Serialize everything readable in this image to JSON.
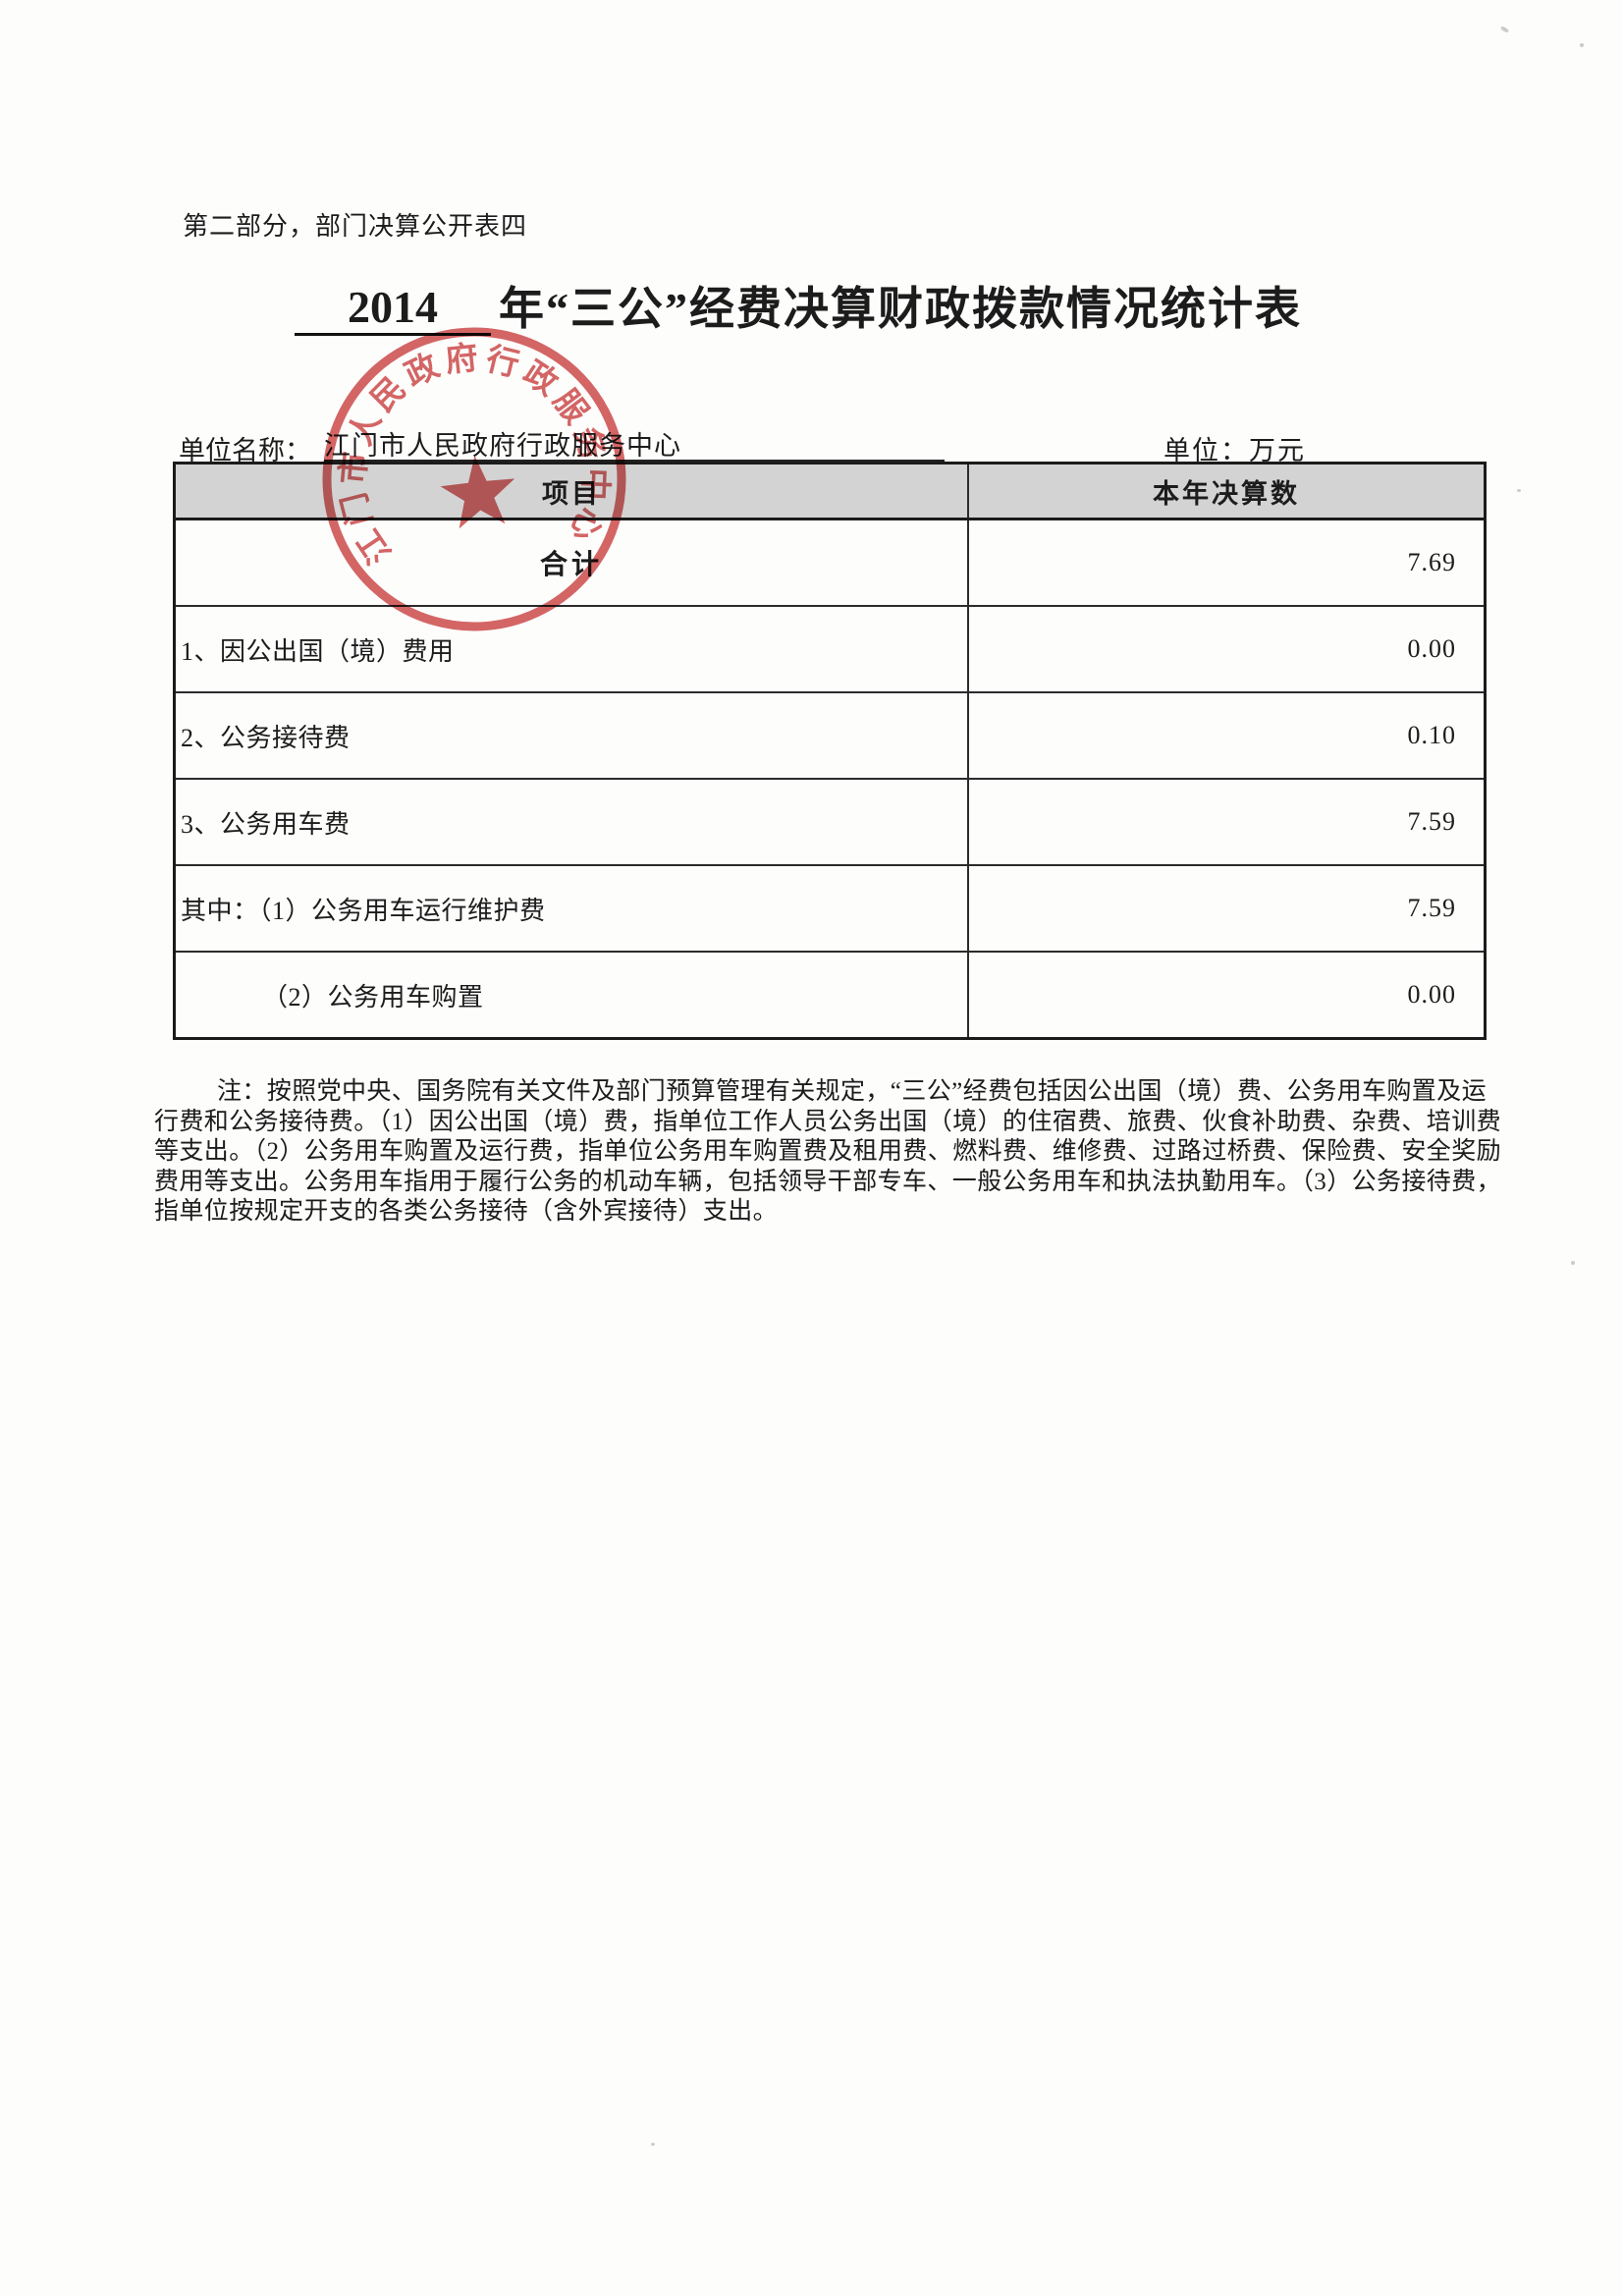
{
  "page": {
    "section_label": "第二部分，部门决算公开表四",
    "title": {
      "year": "2014",
      "rest": "年“三公”经费决算财政拨款情况统计表"
    },
    "unit_name_label": "单位名称：",
    "unit_name": "江门市人民政府行政服务中心",
    "unit_label": "单位：万元"
  },
  "table": {
    "headers": [
      "项目",
      "本年决算数"
    ],
    "rows": [
      {
        "item": "合计",
        "value": "7.69"
      },
      {
        "item": "1、因公出国（境）费用",
        "value": "0.00"
      },
      {
        "item": "2、公务接待费",
        "value": "0.10"
      },
      {
        "item": "3、公务用车费",
        "value": "7.59"
      },
      {
        "item": "其中：（1）公务用车运行维护费",
        "value": "7.59"
      },
      {
        "item": "（2）公务用车购置",
        "value": "0.00"
      }
    ]
  },
  "note": {
    "lines": [
      "注：按照党中央、国务院有关文件及部门预算管理有关规定，“三公”经费包括因公出国（境）费、公务用车购置及运",
      "行费和公务接待费。（1）因公出国（境）费，指单位工作人员公务出国（境）的住宿费、旅费、伙食补助费、杂费、培训费",
      "等支出。（2）公务用车购置及运行费，指单位公务用车购置费及租用费、燃料费、维修费、过路过桥费、保险费、安全奖励",
      "费用等支出。公务用车指用于履行公务的机动车辆，包括领导干部专车、一般公务用车和执法执勤用车。（3）公务接待费，",
      "指单位按规定开支的各类公务接待（含外宾接待）支出。"
    ]
  },
  "stamp": {
    "text": "江门市人民政府行政服务中心",
    "color": "#c93a3a"
  }
}
